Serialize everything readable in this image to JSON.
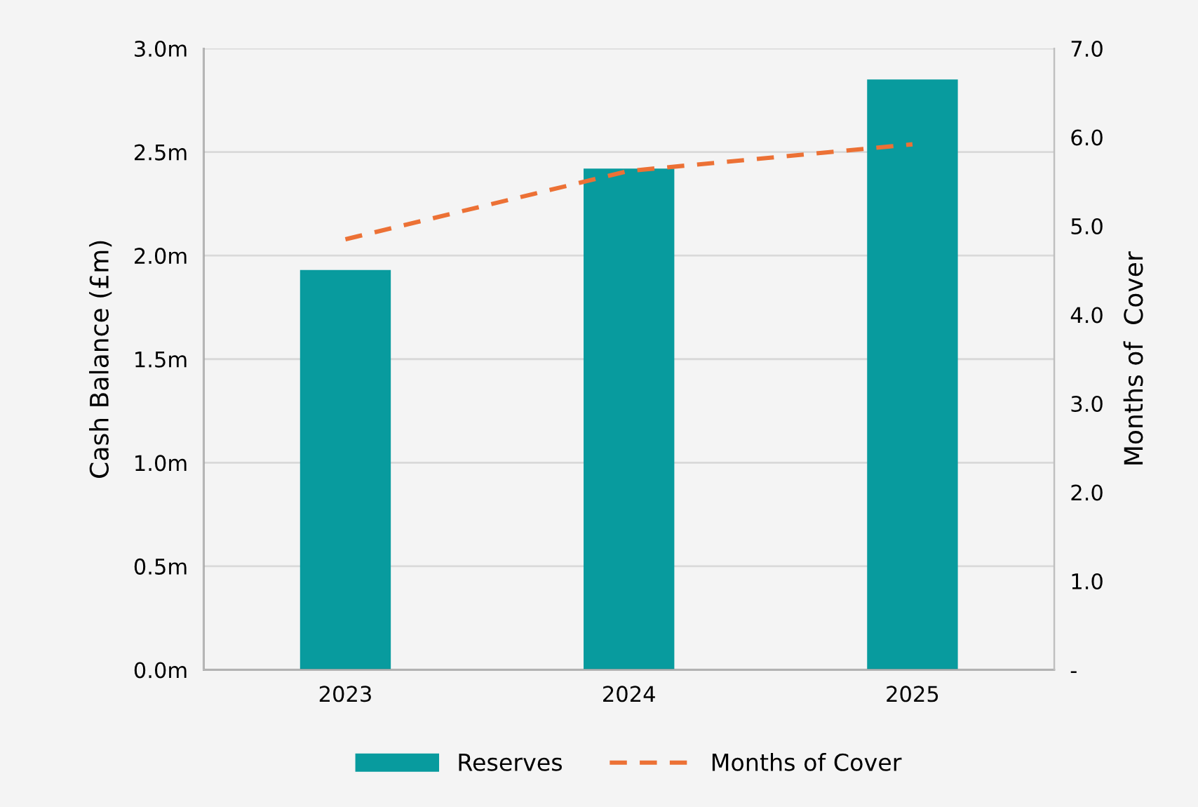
{
  "chart_data": {
    "type": "bar",
    "categories": [
      "2023",
      "2024",
      "2025"
    ],
    "ylabel": "Cash Balance (£m)",
    "y2label": "Months of  Cover",
    "series": [
      {
        "name": "Reserves",
        "color": "#089b9e",
        "values": [
          1.93,
          2.42,
          2.85
        ]
      },
      {
        "name": "Months of Cover",
        "type": "line",
        "axis": "y2",
        "color": "#ec7135",
        "line_style": "dashed",
        "marker": "none",
        "values": [
          4.85,
          5.62,
          5.92
        ]
      }
    ],
    "ylim": [
      0,
      3
    ],
    "yticks": [
      {
        "value": 0,
        "label": "0.0m"
      },
      {
        "value": 0.5,
        "label": "0.5m"
      },
      {
        "value": 1,
        "label": "1.0m"
      },
      {
        "value": 1.5,
        "label": "1.5m"
      },
      {
        "value": 2,
        "label": "2.0m"
      },
      {
        "value": 2.5,
        "label": "2.5m"
      },
      {
        "value": 3,
        "label": "3.0m"
      }
    ],
    "y2lim": [
      0,
      7
    ],
    "y2ticks": [
      {
        "value": 0,
        "label": "-"
      },
      {
        "value": 1,
        "label": "1.0"
      },
      {
        "value": 2,
        "label": "2.0"
      },
      {
        "value": 3,
        "label": "3.0"
      },
      {
        "value": 4,
        "label": "4.0"
      },
      {
        "value": 5,
        "label": "5.0"
      },
      {
        "value": 6,
        "label": "6.0"
      },
      {
        "value": 7,
        "label": "7.0"
      }
    ],
    "grid": "y",
    "legend": "bottom"
  }
}
